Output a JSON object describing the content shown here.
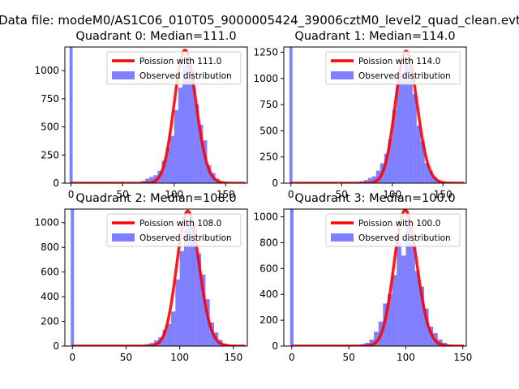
{
  "figure": {
    "suptitle": "Data file: modeM0/AS1C06_010T05_9000005424_39006cztM0_level2_quad_clean.evt"
  },
  "colors": {
    "hist": "#0000ff",
    "hist_opacity": 0.5,
    "poisson": "#ff0000"
  },
  "chart_data": [
    {
      "type": "bar",
      "title": "Quadrant 0: Median=111.0",
      "median": 111.0,
      "xlim": [
        -6,
        171
      ],
      "ylim": [
        0,
        1210
      ],
      "xticks": [
        0,
        50,
        100,
        150
      ],
      "yticks": [
        0,
        250,
        500,
        750,
        1000
      ],
      "legend": {
        "location": "upper-right",
        "line_label": "Poission with 111.0",
        "hist_label": "Observed distribution"
      },
      "bins": [
        [
          -1.5,
          1.5,
          1210
        ],
        [
          60,
          64,
          4
        ],
        [
          64,
          68,
          8
        ],
        [
          68,
          72,
          20
        ],
        [
          72,
          76,
          40
        ],
        [
          76,
          80,
          55
        ],
        [
          80,
          84,
          70
        ],
        [
          84,
          88,
          110
        ],
        [
          88,
          92,
          200
        ],
        [
          92,
          96,
          320
        ],
        [
          96,
          100,
          420
        ],
        [
          100,
          104,
          650
        ],
        [
          104,
          108,
          850
        ],
        [
          108,
          112,
          1050
        ],
        [
          112,
          116,
          1100
        ],
        [
          116,
          120,
          1000
        ],
        [
          120,
          124,
          700
        ],
        [
          124,
          128,
          520
        ],
        [
          128,
          132,
          380
        ],
        [
          132,
          136,
          160
        ],
        [
          136,
          140,
          90
        ],
        [
          140,
          144,
          40
        ],
        [
          144,
          148,
          15
        ],
        [
          148,
          152,
          5
        ]
      ]
    },
    {
      "type": "bar",
      "title": "Quadrant 1: Median=114.0",
      "median": 114.0,
      "xlim": [
        -7,
        173
      ],
      "ylim": [
        0,
        1300
      ],
      "xticks": [
        0,
        50,
        100,
        150
      ],
      "yticks": [
        0,
        250,
        500,
        750,
        1000,
        1250
      ],
      "legend": {
        "location": "upper-right",
        "line_label": "Poission with 114.0",
        "hist_label": "Observed distribution"
      },
      "bins": [
        [
          -1.5,
          1.5,
          1300
        ],
        [
          60,
          64,
          4
        ],
        [
          64,
          68,
          10
        ],
        [
          68,
          72,
          18
        ],
        [
          72,
          76,
          30
        ],
        [
          76,
          80,
          50
        ],
        [
          80,
          84,
          65
        ],
        [
          84,
          88,
          120
        ],
        [
          88,
          92,
          190
        ],
        [
          92,
          96,
          280
        ],
        [
          96,
          100,
          420
        ],
        [
          100,
          104,
          700
        ],
        [
          104,
          108,
          1000
        ],
        [
          108,
          112,
          1050
        ],
        [
          112,
          116,
          1200
        ],
        [
          116,
          120,
          1100
        ],
        [
          120,
          124,
          850
        ],
        [
          124,
          128,
          550
        ],
        [
          128,
          132,
          400
        ],
        [
          132,
          136,
          190
        ],
        [
          136,
          140,
          120
        ],
        [
          140,
          144,
          60
        ],
        [
          144,
          148,
          25
        ],
        [
          148,
          152,
          8
        ]
      ]
    },
    {
      "type": "bar",
      "title": "Quadrant 2: Median=108.0",
      "median": 108.0,
      "xlim": [
        -7,
        163
      ],
      "ylim": [
        0,
        1110
      ],
      "xticks": [
        0,
        50,
        100,
        150
      ],
      "yticks": [
        0,
        200,
        400,
        600,
        800,
        1000
      ],
      "legend": {
        "location": "upper-right",
        "line_label": "Poission with 108.0",
        "hist_label": "Observed distribution"
      },
      "bins": [
        [
          -1.5,
          1.5,
          1110
        ],
        [
          60,
          64,
          3
        ],
        [
          64,
          68,
          8
        ],
        [
          68,
          72,
          15
        ],
        [
          72,
          76,
          25
        ],
        [
          76,
          80,
          45
        ],
        [
          80,
          84,
          70
        ],
        [
          84,
          88,
          130
        ],
        [
          88,
          92,
          180
        ],
        [
          92,
          96,
          280
        ],
        [
          96,
          100,
          540
        ],
        [
          100,
          104,
          770
        ],
        [
          104,
          108,
          950
        ],
        [
          108,
          112,
          1020
        ],
        [
          112,
          116,
          1000
        ],
        [
          116,
          120,
          750
        ],
        [
          120,
          124,
          580
        ],
        [
          124,
          128,
          380
        ],
        [
          128,
          132,
          190
        ],
        [
          132,
          136,
          110
        ],
        [
          136,
          140,
          50
        ],
        [
          140,
          144,
          20
        ],
        [
          144,
          148,
          8
        ]
      ]
    },
    {
      "type": "bar",
      "title": "Quadrant 3: Median=100.0",
      "median": 100.0,
      "xlim": [
        -7,
        153
      ],
      "ylim": [
        0,
        1060
      ],
      "xticks": [
        0,
        50,
        100,
        150
      ],
      "yticks": [
        0,
        200,
        400,
        600,
        800,
        1000
      ],
      "legend": {
        "location": "upper-right",
        "line_label": "Poission with 100.0",
        "hist_label": "Observed distribution"
      },
      "bins": [
        [
          -1.5,
          1.5,
          1060
        ],
        [
          52,
          56,
          4
        ],
        [
          56,
          60,
          8
        ],
        [
          60,
          64,
          15
        ],
        [
          64,
          68,
          25
        ],
        [
          68,
          72,
          50
        ],
        [
          72,
          76,
          110
        ],
        [
          76,
          80,
          190
        ],
        [
          80,
          84,
          330
        ],
        [
          84,
          88,
          400
        ],
        [
          88,
          92,
          550
        ],
        [
          92,
          96,
          800
        ],
        [
          96,
          100,
          700
        ],
        [
          100,
          104,
          950
        ],
        [
          104,
          108,
          800
        ],
        [
          108,
          112,
          580
        ],
        [
          112,
          116,
          460
        ],
        [
          116,
          120,
          290
        ],
        [
          120,
          124,
          150
        ],
        [
          124,
          128,
          100
        ],
        [
          128,
          132,
          50
        ],
        [
          132,
          136,
          25
        ],
        [
          136,
          140,
          10
        ]
      ]
    }
  ]
}
